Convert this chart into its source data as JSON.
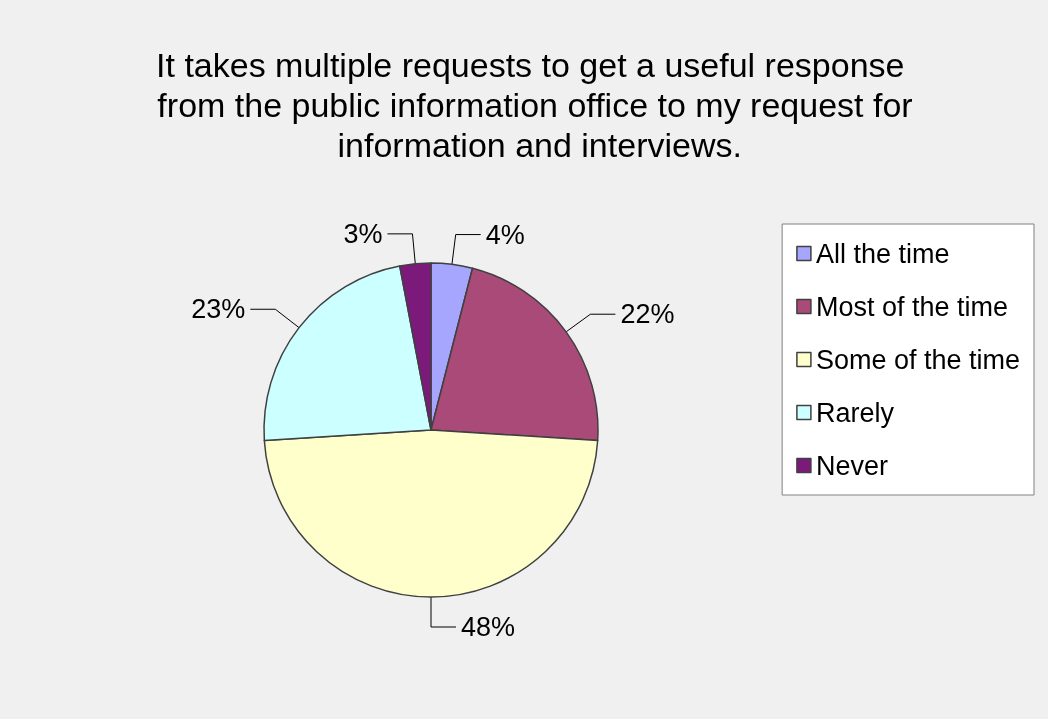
{
  "chart_data": {
    "type": "pie",
    "title": "It takes multiple requests to get a useful response from the public information office to my request for information and interviews.",
    "categories": [
      "All the time",
      "Most of the time",
      "Some of the time",
      "Rarely",
      "Never"
    ],
    "values": [
      4,
      22,
      48,
      23,
      3
    ],
    "colors": [
      "#a6a6ff",
      "#aa4a78",
      "#ffffcc",
      "#ccffff",
      "#7b1a7b"
    ],
    "value_labels": [
      "4%",
      "22%",
      "48%",
      "23%",
      "3%"
    ],
    "legend": "right"
  }
}
